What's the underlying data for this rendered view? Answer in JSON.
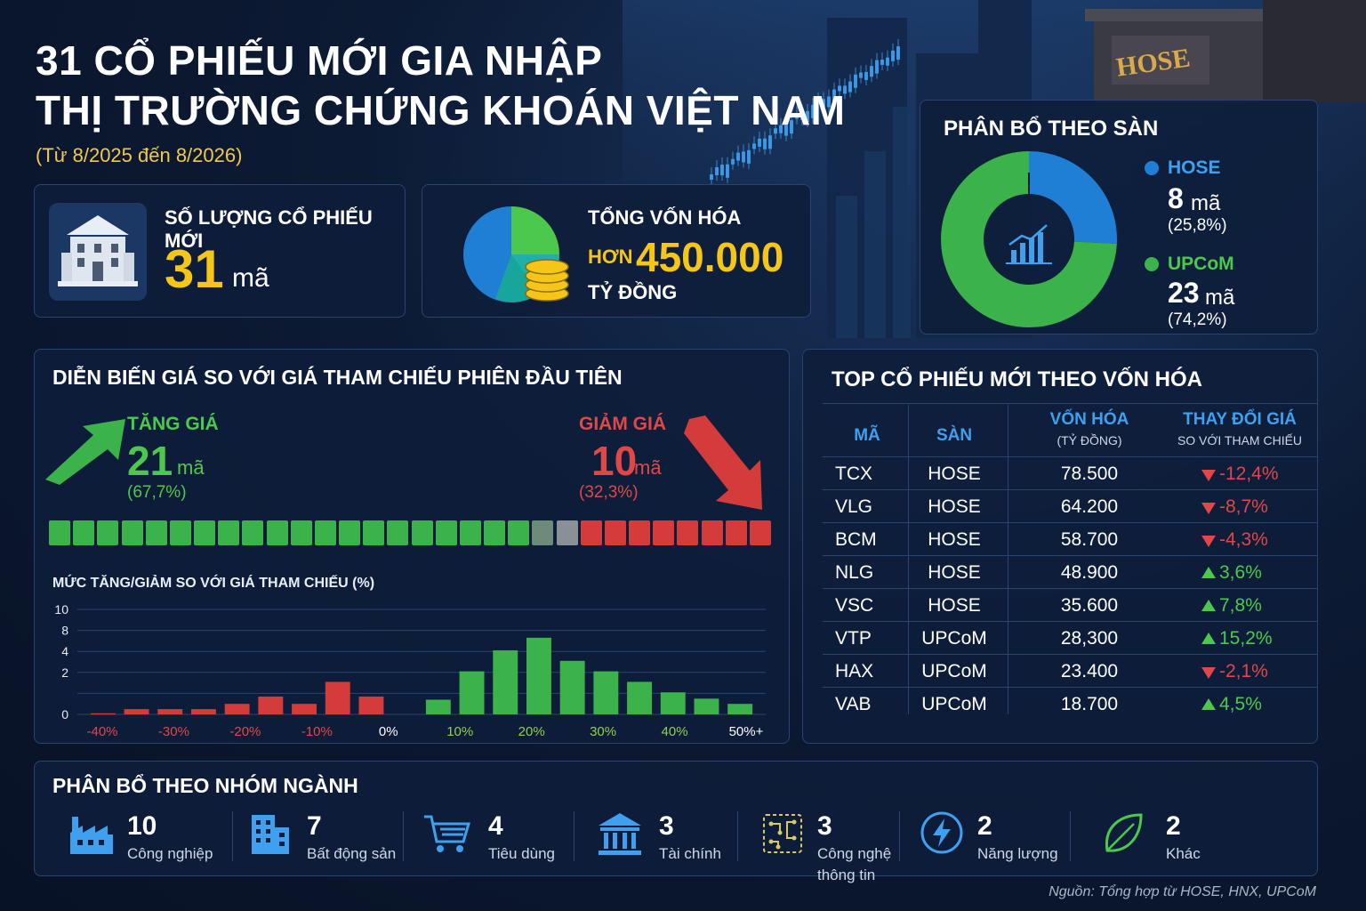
{
  "header": {
    "title_line1": "31 CỔ PHIẾU MỚI GIA NHẬP",
    "title_line2": "THỊ TRƯỜNG CHỨNG KHOÁN VIỆT NAM",
    "subtitle": "(Từ 8/2025 đến 8/2026)"
  },
  "building_sign": "HOSE",
  "stat_count": {
    "label": "SỐ LƯỢNG CỔ PHIẾU MỚI",
    "value": "31",
    "unit": "mã"
  },
  "stat_cap": {
    "label": "TỔNG VỐN HÓA",
    "prefix": "HƠN",
    "value": "450.000",
    "unit": "TỶ ĐỒNG"
  },
  "exchange": {
    "title": "PHÂN BỔ THEO SÀN",
    "items": [
      {
        "name": "HOSE",
        "count": "8",
        "unit": "mã",
        "pct": "(25,8%)",
        "share": 25.8,
        "color": "#1f7fd4"
      },
      {
        "name": "UPCoM",
        "count": "23",
        "unit": "mã",
        "pct": "(74,2%)",
        "share": 74.2,
        "color": "#3cb34a"
      }
    ]
  },
  "price_panel": {
    "title": "DIỄN BIẾN GIÁ SO VỚI GIÁ THAM CHIẾU PHIÊN ĐẦU TIÊN",
    "up": {
      "label": "TĂNG GIÁ",
      "count": "21",
      "unit": "mã",
      "pct": "(67,7%)"
    },
    "down": {
      "label": "GIẢM GIÁ",
      "count": "10",
      "unit": "mã",
      "pct": "(32,3%)"
    },
    "bar_segments": {
      "green": 20,
      "neutral": 2,
      "red": 8
    },
    "chart_label": "MỨC TĂNG/GIẢM SO VỚI GIÁ THAM CHIẾU (%)"
  },
  "chart_data": {
    "type": "bar",
    "title": "MỨC TĂNG/GIẢM SO VỚI GIÁ THAM CHIẾU (%)",
    "ylim": [
      0,
      10
    ],
    "yticks": [
      "10",
      "8",
      "4",
      "2",
      "0"
    ],
    "x_tick_labels": [
      "-40%",
      "-30%",
      "-20%",
      "-10%",
      "0%",
      "10%",
      "20%",
      "30%",
      "40%",
      "50%+"
    ],
    "x_tick_colors": [
      "#e04848",
      "#e04848",
      "#e04848",
      "#e04848",
      "#ffffff",
      "#8fd14f",
      "#8fd14f",
      "#8fd14f",
      "#8fd14f",
      "#ffffff"
    ],
    "bars": [
      {
        "value": 0.1,
        "color": "#d43c3c"
      },
      {
        "value": 0.5,
        "color": "#d43c3c"
      },
      {
        "value": 0.5,
        "color": "#d43c3c"
      },
      {
        "value": 0.5,
        "color": "#d43c3c"
      },
      {
        "value": 1.0,
        "color": "#d43c3c"
      },
      {
        "value": 1.7,
        "color": "#d43c3c"
      },
      {
        "value": 1.0,
        "color": "#d43c3c"
      },
      {
        "value": 3.1,
        "color": "#d43c3c"
      },
      {
        "value": 1.7,
        "color": "#d43c3c"
      },
      {
        "value": 0.0,
        "color": "#3cb34a"
      },
      {
        "value": 1.4,
        "color": "#3cb34a"
      },
      {
        "value": 4.1,
        "color": "#3cb34a"
      },
      {
        "value": 6.1,
        "color": "#3cb34a"
      },
      {
        "value": 7.3,
        "color": "#3cb34a"
      },
      {
        "value": 5.1,
        "color": "#3cb34a"
      },
      {
        "value": 4.1,
        "color": "#3cb34a"
      },
      {
        "value": 3.1,
        "color": "#3cb34a"
      },
      {
        "value": 2.1,
        "color": "#3cb34a"
      },
      {
        "value": 1.5,
        "color": "#3cb34a"
      },
      {
        "value": 1.0,
        "color": "#3cb34a"
      }
    ]
  },
  "top_table": {
    "title": "TOP CỔ PHIẾU MỚI THEO VỐN HÓA",
    "headers": {
      "code": "MÃ",
      "exchange": "SÀN",
      "cap": "VỐN HÓA",
      "cap_sub": "(TỶ ĐỒNG)",
      "change": "THAY ĐỔI GIÁ",
      "change_sub": "SO VỚI THAM CHIẾU"
    },
    "rows": [
      {
        "code": "TCX",
        "exchange": "HOSE",
        "cap": "78.500",
        "change": "-12,4%",
        "dir": "down"
      },
      {
        "code": "VLG",
        "exchange": "HOSE",
        "cap": "64.200",
        "change": "-8,7%",
        "dir": "down"
      },
      {
        "code": "BCM",
        "exchange": "HOSE",
        "cap": "58.700",
        "change": "-4,3%",
        "dir": "down"
      },
      {
        "code": "NLG",
        "exchange": "HOSE",
        "cap": "48.900",
        "change": "3,6%",
        "dir": "up"
      },
      {
        "code": "VSC",
        "exchange": "HOSE",
        "cap": "35.600",
        "change": "7,8%",
        "dir": "up"
      },
      {
        "code": "VTP",
        "exchange": "UPCoM",
        "cap": "28,300",
        "change": "15,2%",
        "dir": "up"
      },
      {
        "code": "HAX",
        "exchange": "UPCoM",
        "cap": "23.400",
        "change": "-2,1%",
        "dir": "down"
      },
      {
        "code": "VAB",
        "exchange": "UPCoM",
        "cap": "18.700",
        "change": "4,5%",
        "dir": "up"
      }
    ]
  },
  "sectors": {
    "title": "PHÂN BỔ THEO NHÓM NGÀNH",
    "items": [
      {
        "count": "10",
        "label": "Công nghiệp",
        "icon": "factory-icon"
      },
      {
        "count": "7",
        "label": "Bất động sản",
        "icon": "building-icon"
      },
      {
        "count": "4",
        "label": "Tiêu dùng",
        "icon": "cart-icon"
      },
      {
        "count": "3",
        "label": "Tài chính",
        "icon": "bank-icon"
      },
      {
        "count": "3",
        "label": "Công nghệ thông tin",
        "label_line1": "Công nghệ",
        "label_line2": "thông tin",
        "icon": "circuit-icon"
      },
      {
        "count": "2",
        "label": "Năng lượng",
        "icon": "lightning-icon"
      },
      {
        "count": "2",
        "label": "Khác",
        "icon": "leaf-icon"
      }
    ]
  },
  "source": "Nguồn: Tổng hợp từ HOSE, HNX, UPCoM"
}
